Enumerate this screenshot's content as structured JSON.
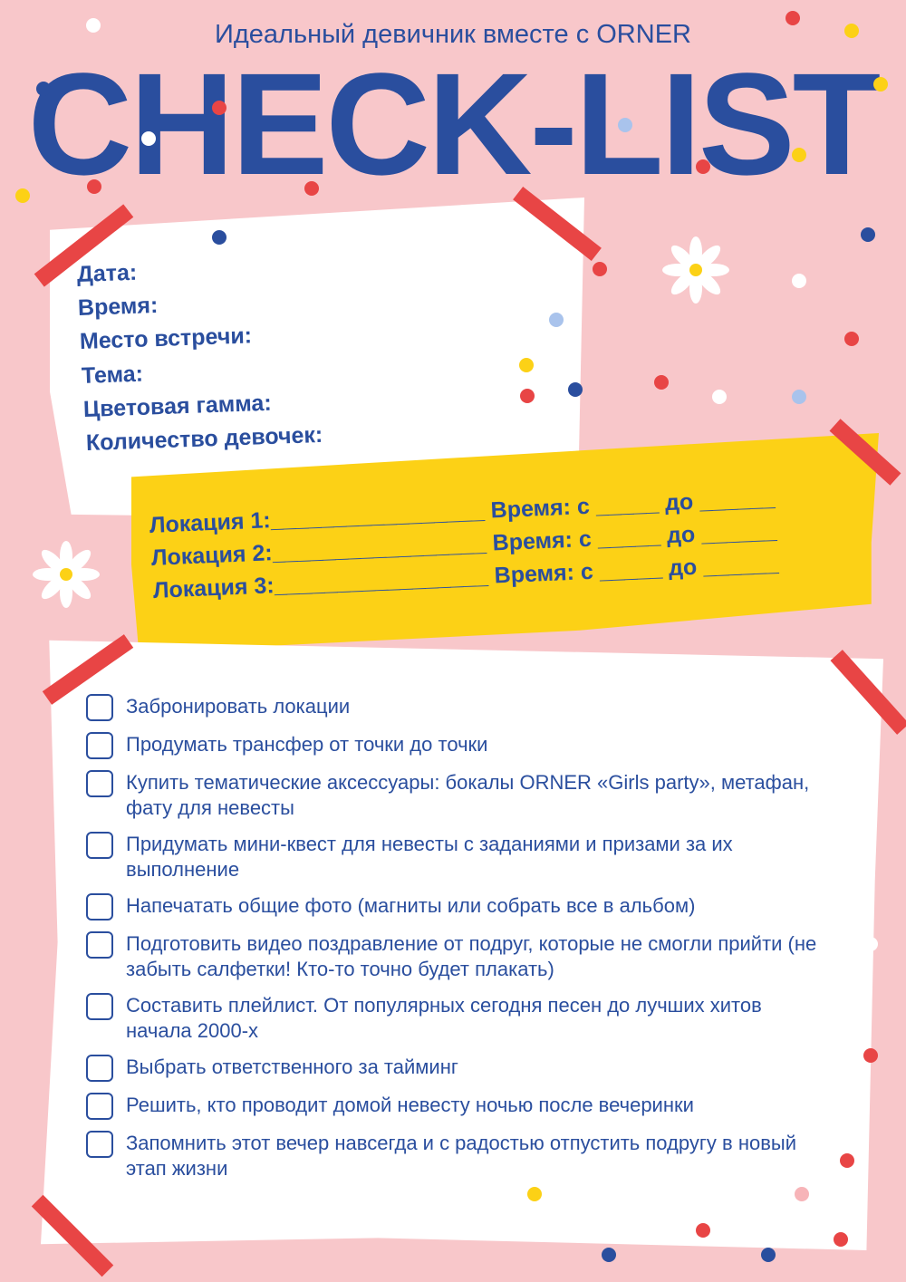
{
  "header": {
    "subtitle": "Идеальный девичник вместе с ORNER",
    "title": "CHECK-LIST"
  },
  "details": {
    "fields": [
      "Дата:",
      "Время:",
      "Место встречи:",
      "Тема:",
      "Цветовая гамма:",
      "Количество девочек:"
    ]
  },
  "locations": [
    {
      "label": "Локация 1:_________________ Время: с _____ до ______"
    },
    {
      "label": "Локация 2:_________________ Время: с _____ до ______"
    },
    {
      "label": "Локация 3:_________________ Время: с _____ до ______"
    }
  ],
  "checklist": [
    {
      "text": "Забронировать локации",
      "checked": false
    },
    {
      "text": "Продумать трансфер от точки до точки",
      "checked": false
    },
    {
      "text": "Купить тематические аксессуары: бокалы ORNER «Girls party», метафан, фату для невесты",
      "checked": false
    },
    {
      "text": "Придумать мини-квест для невесты с заданиями и призами за их выполнение",
      "checked": false
    },
    {
      "text": "Напечатать общие фото (магниты или собрать все в альбом)",
      "checked": false
    },
    {
      "text": "Подготовить видео поздравление от подруг, которые не смогли прийти (не забыть салфетки! Кто-то точно будет плакать)",
      "checked": false
    },
    {
      "text": "Составить плейлист. От популярных сегодня песен до лучших хитов начала 2000-х",
      "checked": false
    },
    {
      "text": "Выбрать ответственного за тайминг",
      "checked": false
    },
    {
      "text": "Решить, кто проводит домой невесту ночью после вечеринки",
      "checked": false
    },
    {
      "text": "Запомнить этот вечер навсегда и с радостью отпустить подругу в новый этап жизни",
      "checked": false
    }
  ],
  "colors": {
    "background": "#f8c7ca",
    "primary": "#2a4e9e",
    "yellow": "#fcd116",
    "tape": "#e84545",
    "dot_light_blue": "#a9c3ec"
  }
}
